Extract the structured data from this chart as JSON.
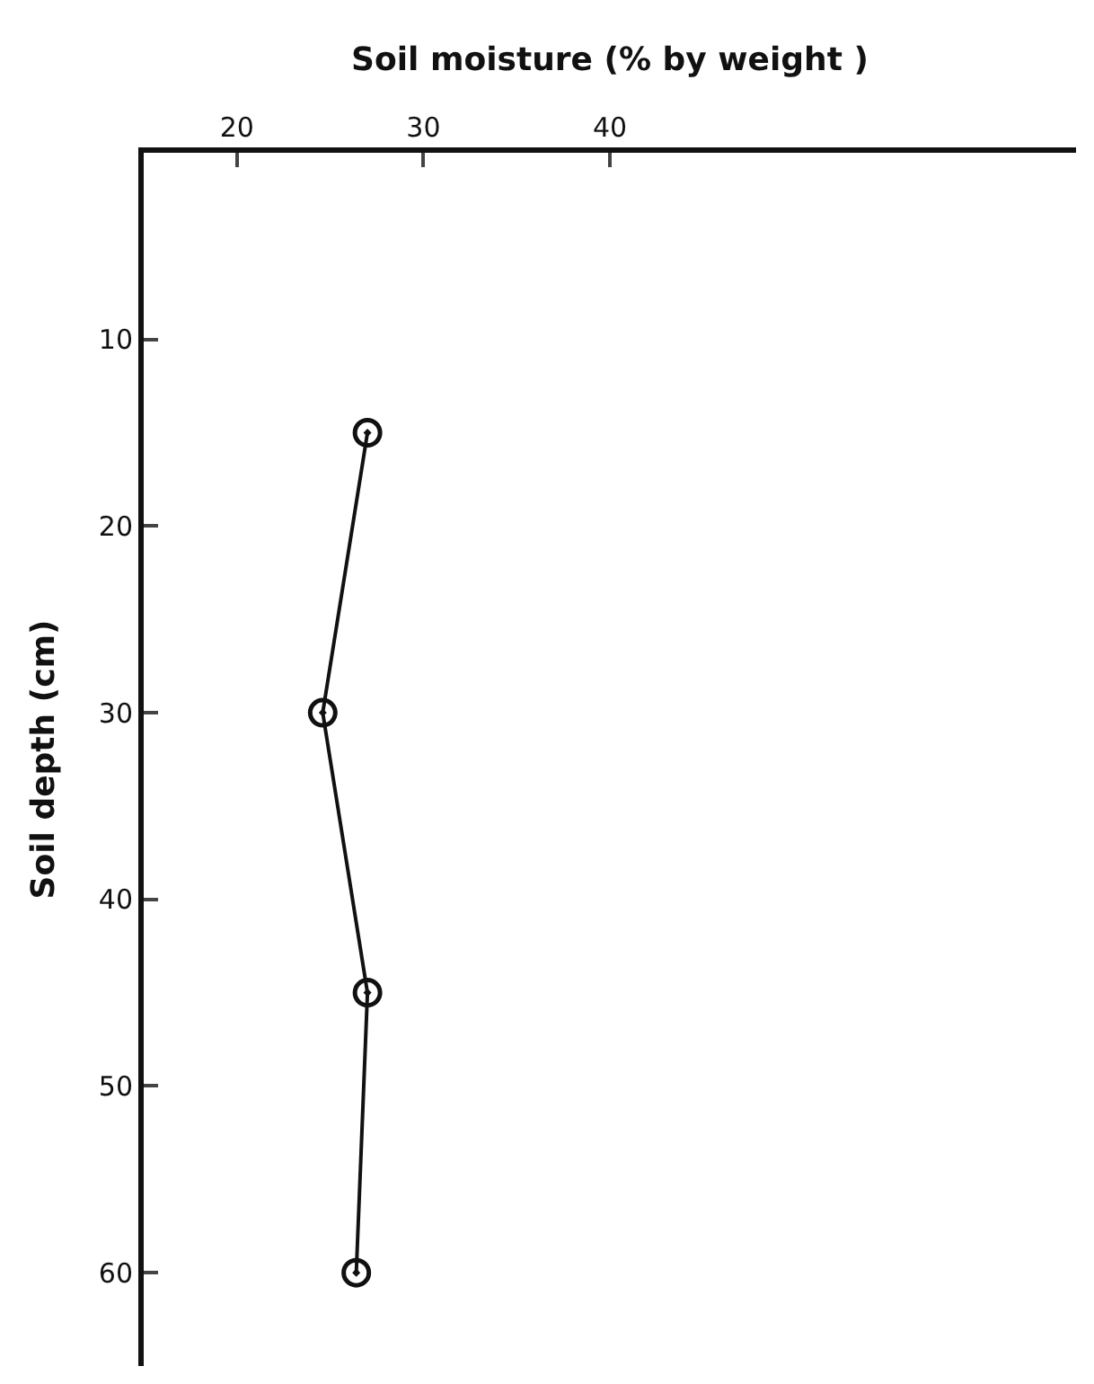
{
  "chart_data": {
    "type": "line",
    "xlabel": "Soil moisture (% by weight )",
    "ylabel": "Soil depth (cm)",
    "x": [
      27,
      24.6,
      27,
      26.4
    ],
    "series": [
      {
        "color": "#111111",
        "values": [
          15,
          30,
          45,
          60
        ]
      }
    ],
    "xlim": [
      15,
      65
    ],
    "xticks": [
      20,
      30,
      40
    ],
    "ylim": [
      65,
      0
    ],
    "yticks": [
      10,
      20,
      30,
      40,
      50,
      60
    ],
    "marker": "circle",
    "line_style": "solid"
  }
}
